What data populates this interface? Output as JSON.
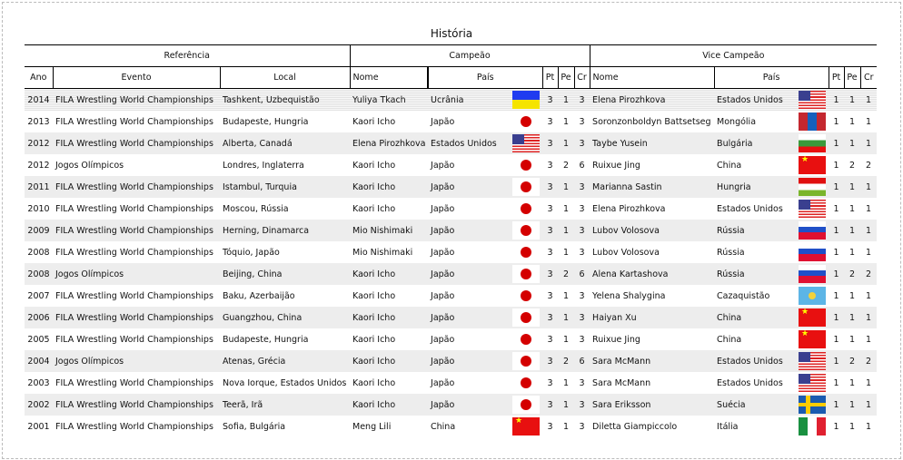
{
  "title": "História",
  "groups": {
    "reference": "Referência",
    "champion": "Campeão",
    "vice": "Vice Campeão"
  },
  "columns": {
    "year": "Ano",
    "event": "Evento",
    "location": "Local",
    "name": "Nome",
    "country": "País",
    "pt": "Pt",
    "pe": "Pe",
    "cr": "Cr"
  },
  "rows": [
    {
      "year": "2014",
      "event": "FILA Wrestling World Championships",
      "location": "Tashkent, Uzbequistão",
      "c_name": "Yuliya Tkach",
      "c_country": "Ucrânia",
      "c_flag": "ua",
      "c_pt": "3",
      "c_pe": "1",
      "c_cr": "3",
      "v_name": "Elena Pirozhkova",
      "v_country": "Estados Unidos",
      "v_flag": "us",
      "v_pt": "1",
      "v_pe": "1",
      "v_cr": "1"
    },
    {
      "year": "2013",
      "event": "FILA Wrestling World Championships",
      "location": "Budapeste, Hungria",
      "c_name": "Kaori Icho",
      "c_country": "Japão",
      "c_flag": "jp",
      "c_pt": "3",
      "c_pe": "1",
      "c_cr": "3",
      "v_name": "Soronzonboldyn Battsetseg",
      "v_country": "Mongólia",
      "v_flag": "mn",
      "v_pt": "1",
      "v_pe": "1",
      "v_cr": "1"
    },
    {
      "year": "2012",
      "event": "FILA Wrestling World Championships",
      "location": "Alberta, Canadá",
      "c_name": "Elena Pirozhkova",
      "c_country": "Estados Unidos",
      "c_flag": "us",
      "c_pt": "3",
      "c_pe": "1",
      "c_cr": "3",
      "v_name": "Taybe Yusein",
      "v_country": "Bulgária",
      "v_flag": "bg",
      "v_pt": "1",
      "v_pe": "1",
      "v_cr": "1"
    },
    {
      "year": "2012",
      "event": "Jogos Olímpicos",
      "location": "Londres, Inglaterra",
      "c_name": "Kaori Icho",
      "c_country": "Japão",
      "c_flag": "jp",
      "c_pt": "3",
      "c_pe": "2",
      "c_cr": "6",
      "v_name": "Ruixue Jing",
      "v_country": "China",
      "v_flag": "cn",
      "v_pt": "1",
      "v_pe": "2",
      "v_cr": "2"
    },
    {
      "year": "2011",
      "event": "FILA Wrestling World Championships",
      "location": "Istambul, Turquia",
      "c_name": "Kaori Icho",
      "c_country": "Japão",
      "c_flag": "jp",
      "c_pt": "3",
      "c_pe": "1",
      "c_cr": "3",
      "v_name": "Marianna Sastin",
      "v_country": "Hungria",
      "v_flag": "hu",
      "v_pt": "1",
      "v_pe": "1",
      "v_cr": "1"
    },
    {
      "year": "2010",
      "event": "FILA Wrestling World Championships",
      "location": "Moscou, Rússia",
      "c_name": "Kaori Icho",
      "c_country": "Japão",
      "c_flag": "jp",
      "c_pt": "3",
      "c_pe": "1",
      "c_cr": "3",
      "v_name": "Elena Pirozhkova",
      "v_country": "Estados Unidos",
      "v_flag": "us",
      "v_pt": "1",
      "v_pe": "1",
      "v_cr": "1"
    },
    {
      "year": "2009",
      "event": "FILA Wrestling World Championships",
      "location": "Herning, Dinamarca",
      "c_name": "Mio Nishimaki",
      "c_country": "Japão",
      "c_flag": "jp",
      "c_pt": "3",
      "c_pe": "1",
      "c_cr": "3",
      "v_name": "Lubov Volosova",
      "v_country": "Rússia",
      "v_flag": "ru",
      "v_pt": "1",
      "v_pe": "1",
      "v_cr": "1"
    },
    {
      "year": "2008",
      "event": "FILA Wrestling World Championships",
      "location": "Tóquio, Japão",
      "c_name": "Mio Nishimaki",
      "c_country": "Japão",
      "c_flag": "jp",
      "c_pt": "3",
      "c_pe": "1",
      "c_cr": "3",
      "v_name": "Lubov Volosova",
      "v_country": "Rússia",
      "v_flag": "ru",
      "v_pt": "1",
      "v_pe": "1",
      "v_cr": "1"
    },
    {
      "year": "2008",
      "event": "Jogos Olímpicos",
      "location": "Beijing, China",
      "c_name": "Kaori Icho",
      "c_country": "Japão",
      "c_flag": "jp",
      "c_pt": "3",
      "c_pe": "2",
      "c_cr": "6",
      "v_name": "Alena Kartashova",
      "v_country": "Rússia",
      "v_flag": "ru",
      "v_pt": "1",
      "v_pe": "2",
      "v_cr": "2"
    },
    {
      "year": "2007",
      "event": "FILA Wrestling World Championships",
      "location": "Baku, Azerbaijão",
      "c_name": "Kaori Icho",
      "c_country": "Japão",
      "c_flag": "jp",
      "c_pt": "3",
      "c_pe": "1",
      "c_cr": "3",
      "v_name": "Yelena Shalygina",
      "v_country": "Cazaquistão",
      "v_flag": "kz",
      "v_pt": "1",
      "v_pe": "1",
      "v_cr": "1"
    },
    {
      "year": "2006",
      "event": "FILA Wrestling World Championships",
      "location": "Guangzhou, China",
      "c_name": "Kaori Icho",
      "c_country": "Japão",
      "c_flag": "jp",
      "c_pt": "3",
      "c_pe": "1",
      "c_cr": "3",
      "v_name": "Haiyan Xu",
      "v_country": "China",
      "v_flag": "cn",
      "v_pt": "1",
      "v_pe": "1",
      "v_cr": "1"
    },
    {
      "year": "2005",
      "event": "FILA Wrestling World Championships",
      "location": "Budapeste, Hungria",
      "c_name": "Kaori Icho",
      "c_country": "Japão",
      "c_flag": "jp",
      "c_pt": "3",
      "c_pe": "1",
      "c_cr": "3",
      "v_name": "Ruixue Jing",
      "v_country": "China",
      "v_flag": "cn",
      "v_pt": "1",
      "v_pe": "1",
      "v_cr": "1"
    },
    {
      "year": "2004",
      "event": "Jogos Olímpicos",
      "location": "Atenas, Grécia",
      "c_name": "Kaori Icho",
      "c_country": "Japão",
      "c_flag": "jp",
      "c_pt": "3",
      "c_pe": "2",
      "c_cr": "6",
      "v_name": "Sara McMann",
      "v_country": "Estados Unidos",
      "v_flag": "us",
      "v_pt": "1",
      "v_pe": "2",
      "v_cr": "2"
    },
    {
      "year": "2003",
      "event": "FILA Wrestling World Championships",
      "location": "Nova Iorque, Estados Unidos",
      "c_name": "Kaori Icho",
      "c_country": "Japão",
      "c_flag": "jp",
      "c_pt": "3",
      "c_pe": "1",
      "c_cr": "3",
      "v_name": "Sara McMann",
      "v_country": "Estados Unidos",
      "v_flag": "us",
      "v_pt": "1",
      "v_pe": "1",
      "v_cr": "1"
    },
    {
      "year": "2002",
      "event": "FILA Wrestling World Championships",
      "location": "Teerã, Irã",
      "c_name": "Kaori Icho",
      "c_country": "Japão",
      "c_flag": "jp",
      "c_pt": "3",
      "c_pe": "1",
      "c_cr": "3",
      "v_name": "Sara Eriksson",
      "v_country": "Suécia",
      "v_flag": "se",
      "v_pt": "1",
      "v_pe": "1",
      "v_cr": "1"
    },
    {
      "year": "2001",
      "event": "FILA Wrestling World Championships",
      "location": "Sofia, Bulgária",
      "c_name": "Meng Lili",
      "c_country": "China",
      "c_flag": "cn",
      "c_pt": "3",
      "c_pe": "1",
      "c_cr": "3",
      "v_name": "Diletta Giampiccolo",
      "v_country": "Itália",
      "v_flag": "it",
      "v_pt": "1",
      "v_pe": "1",
      "v_cr": "1"
    }
  ]
}
